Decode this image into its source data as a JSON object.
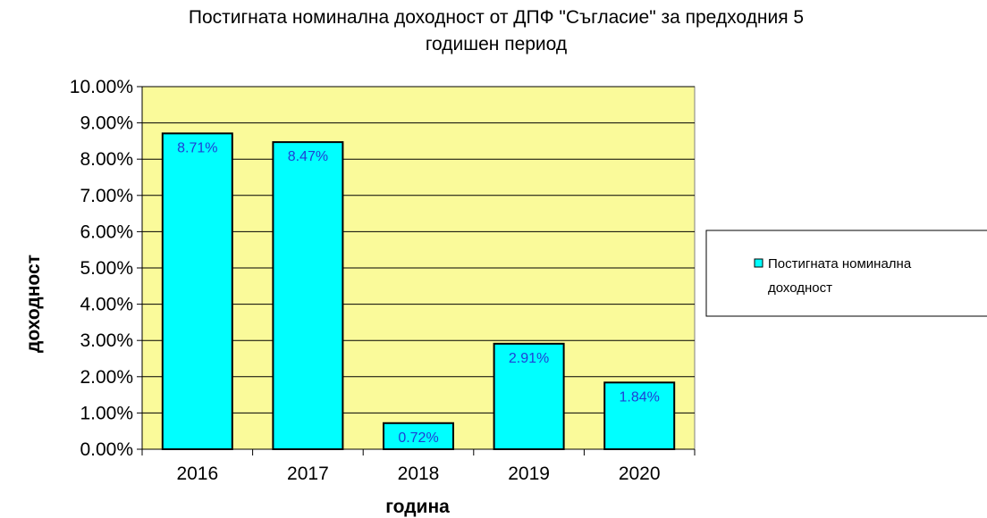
{
  "chart_data": {
    "type": "bar",
    "title_line1": "Постигната номинална  доходност от ДПФ \"Съгласие\" за предходния 5",
    "title_line2": "годишен период",
    "xlabel": "година",
    "ylabel": "доходност",
    "categories": [
      "2016",
      "2017",
      "2018",
      "2019",
      "2020"
    ],
    "series": [
      {
        "name_line1": "Постигната номинална",
        "name_line2": "доходност",
        "values": [
          8.71,
          8.47,
          0.72,
          2.91,
          1.84
        ],
        "data_labels": [
          "8.71%",
          "8.47%",
          "0.72%",
          "2.91%",
          "1.84%"
        ]
      }
    ],
    "yticks": [
      "0.00%",
      "1.00%",
      "2.00%",
      "3.00%",
      "4.00%",
      "5.00%",
      "6.00%",
      "7.00%",
      "8.00%",
      "9.00%",
      "10.00%"
    ],
    "ylim": [
      0,
      10
    ],
    "grid": true,
    "legend_position": "right",
    "colors": {
      "plot_background": "#fafa9a",
      "bar_fill": "#00ffff",
      "bar_stroke": "#000000",
      "data_label": "#1f3fd6",
      "gridline": "#000000"
    }
  }
}
